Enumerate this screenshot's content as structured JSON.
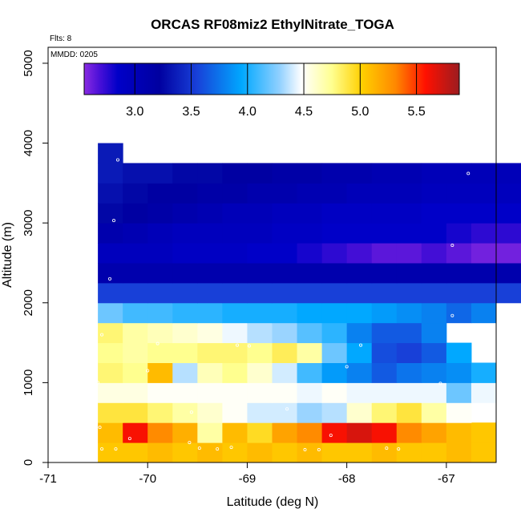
{
  "chart_data": {
    "type": "heatmap",
    "title": "ORCAS RF08miz2 EthylNitrate_TOGA",
    "xlabel": "Latitude (deg N)",
    "ylabel": "Altitude (m)",
    "xlim": [
      -71,
      -66.5
    ],
    "ylim": [
      0,
      5200
    ],
    "x_ticks": [
      -71,
      -70,
      -69,
      -68,
      -67
    ],
    "x_tick_labels": [
      "-71",
      "-70",
      "-69",
      "-68",
      "-67"
    ],
    "y_ticks": [
      0,
      1000,
      2000,
      3000,
      4000,
      5000
    ],
    "y_tick_labels": [
      "0",
      "1000",
      "2000",
      "3000",
      "4000",
      "5000"
    ],
    "flights_note": "Flts: 8",
    "date_note": "MMDD: 0205",
    "colorbar": {
      "min": 2.55,
      "max": 5.88,
      "ticks": [
        3.0,
        3.5,
        4.0,
        4.5,
        5.0,
        5.5
      ],
      "tick_labels": [
        "3.0",
        "3.5",
        "4.0",
        "4.5",
        "5.0",
        "5.5"
      ],
      "stops": [
        [
          0.0,
          "#8a2be2"
        ],
        [
          0.04,
          "#4b10d8"
        ],
        [
          0.09,
          "#0000c8"
        ],
        [
          0.2,
          "#0000a0"
        ],
        [
          0.3,
          "#1840d8"
        ],
        [
          0.42,
          "#00a8ff"
        ],
        [
          0.52,
          "#90d0ff"
        ],
        [
          0.58,
          "#ffffff"
        ],
        [
          0.66,
          "#ffff90"
        ],
        [
          0.74,
          "#ffd000"
        ],
        [
          0.83,
          "#ff8800"
        ],
        [
          0.91,
          "#ff1000"
        ],
        [
          1.0,
          "#9c1c20"
        ]
      ]
    },
    "cell_width_deg": 0.25,
    "cell_height_m": 250,
    "grid_x_start": -70.5,
    "grid_y_start": 0,
    "grid": [
      [
        5.05,
        5.05,
        5.1,
        5.05,
        5.1,
        5.05,
        5.1,
        5.05,
        5.1,
        5.05,
        5.05,
        5.1,
        5.05,
        5.05,
        5.1,
        5.05
      ],
      [
        5.1,
        5.6,
        5.3,
        5.15,
        4.7,
        5.1,
        4.95,
        5.2,
        5.3,
        5.6,
        5.7,
        5.6,
        5.3,
        5.2,
        5.1,
        5.05
      ],
      [
        4.9,
        4.9,
        4.8,
        4.7,
        4.6,
        4.5,
        4.4,
        4.4,
        4.3,
        4.35,
        4.6,
        4.8,
        4.9,
        4.7,
        4.5
      ],
      [
        4.55,
        4.55,
        4.5,
        4.5,
        4.5,
        4.5,
        4.5,
        4.5,
        4.45,
        4.5,
        4.45,
        4.45,
        4.45,
        4.45,
        4.2,
        4.45
      ],
      [
        4.8,
        4.75,
        5.1,
        4.35,
        4.65,
        4.75,
        4.6,
        4.4,
        4.1,
        3.9,
        3.8,
        3.65,
        3.75,
        3.8,
        3.85,
        4.0
      ],
      [
        4.75,
        4.7,
        4.75,
        4.75,
        4.8,
        4.8,
        4.75,
        4.85,
        4.7,
        4.2,
        3.95,
        3.6,
        3.55,
        3.65,
        3.95
      ],
      [
        4.8,
        4.7,
        4.65,
        4.6,
        4.55,
        4.45,
        4.35,
        4.3,
        4.15,
        4.05,
        3.8,
        3.65,
        3.65,
        3.8
      ],
      [
        4.2,
        4.1,
        4.1,
        4.05,
        4.05,
        4.0,
        4.0,
        4.0,
        3.95,
        3.95,
        3.95,
        3.9,
        3.85,
        3.8,
        3.7,
        3.8
      ],
      [
        3.55,
        3.55,
        3.55,
        3.55,
        3.55,
        3.55,
        3.55,
        3.55,
        3.55,
        3.55,
        3.55,
        3.55,
        3.55,
        3.55,
        3.55,
        3.55,
        3.55
      ],
      [
        3.1,
        3.1,
        3.1,
        3.1,
        3.1,
        3.1,
        3.1,
        3.1,
        3.1,
        3.1,
        3.1,
        3.1,
        3.1,
        3.1,
        3.1,
        3.1,
        3.1
      ],
      [
        2.95,
        2.95,
        2.95,
        2.9,
        2.9,
        2.9,
        2.85,
        2.85,
        2.8,
        2.75,
        2.7,
        2.65,
        2.65,
        2.7,
        2.65,
        2.6,
        2.6,
        2.55
      ],
      [
        3.1,
        3.05,
        3.0,
        2.95,
        2.95,
        2.95,
        2.95,
        2.9,
        2.9,
        2.85,
        2.85,
        2.85,
        2.85,
        2.85,
        2.8,
        2.75,
        2.75,
        2.75
      ],
      [
        3.25,
        3.2,
        3.15,
        3.1,
        3.05,
        3.0,
        3.0,
        2.95,
        2.95,
        2.9,
        2.9,
        2.9,
        2.9,
        2.85,
        2.85,
        2.85,
        2.85,
        2.85
      ],
      [
        3.3,
        3.25,
        3.2,
        3.2,
        3.15,
        3.15,
        3.1,
        3.1,
        3.05,
        3.05,
        3.0,
        3.0,
        3.0,
        2.95,
        2.95,
        2.95,
        2.95,
        2.95
      ],
      [
        3.35,
        3.3,
        3.3,
        3.25,
        3.25,
        3.2,
        3.2,
        3.15,
        3.15,
        3.1,
        3.1,
        3.05,
        3.05,
        3.0,
        3.0,
        3.0,
        3.0,
        3.0
      ],
      [
        3.35
      ]
    ],
    "samples": [
      {
        "lat": -70.46,
        "alt": 170
      },
      {
        "lat": -70.32,
        "alt": 170
      },
      {
        "lat": -70.48,
        "alt": 440
      },
      {
        "lat": -70.18,
        "alt": 300
      },
      {
        "lat": -69.58,
        "alt": 250
      },
      {
        "lat": -69.48,
        "alt": 180
      },
      {
        "lat": -69.3,
        "alt": 170
      },
      {
        "lat": -69.16,
        "alt": 190
      },
      {
        "lat": -68.42,
        "alt": 160
      },
      {
        "lat": -68.28,
        "alt": 160
      },
      {
        "lat": -68.16,
        "alt": 340
      },
      {
        "lat": -67.6,
        "alt": 180
      },
      {
        "lat": -67.48,
        "alt": 170
      },
      {
        "lat": -70.5,
        "alt": 1000
      },
      {
        "lat": -70.0,
        "alt": 1150
      },
      {
        "lat": -69.1,
        "alt": 1470
      },
      {
        "lat": -68.98,
        "alt": 1460
      },
      {
        "lat": -68.0,
        "alt": 1200
      },
      {
        "lat": -67.86,
        "alt": 1470
      },
      {
        "lat": -67.06,
        "alt": 990
      },
      {
        "lat": -66.94,
        "alt": 1840
      },
      {
        "lat": -70.46,
        "alt": 1600
      },
      {
        "lat": -69.9,
        "alt": 1490
      },
      {
        "lat": -69.56,
        "alt": 630
      },
      {
        "lat": -68.6,
        "alt": 670
      },
      {
        "lat": -70.38,
        "alt": 2300
      },
      {
        "lat": -70.34,
        "alt": 3030
      },
      {
        "lat": -70.3,
        "alt": 3790
      },
      {
        "lat": -66.78,
        "alt": 3620
      },
      {
        "lat": -66.94,
        "alt": 2720
      }
    ]
  }
}
